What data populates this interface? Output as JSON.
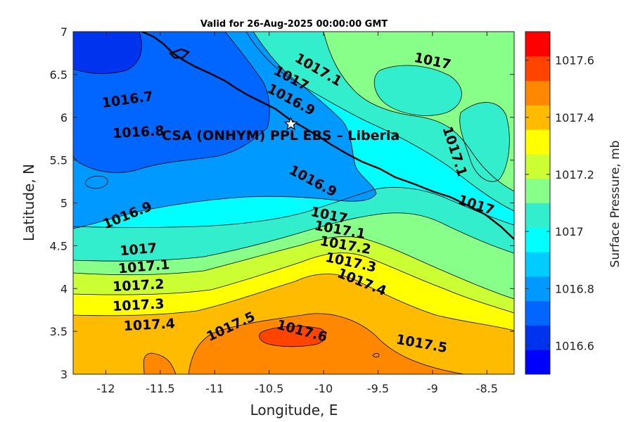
{
  "title": "Valid for 26-Aug-2025 00:00:00 GMT",
  "site_label": "CSA (ONHYM) PPL EBS  – Liberia",
  "chart_data": {
    "type": "contour",
    "xlabel": "Longitude, E",
    "ylabel": "Latitude, N",
    "xlim": [
      -12.3,
      -8.25
    ],
    "ylim": [
      3,
      7
    ],
    "x_ticks": [
      "-12",
      "-11.5",
      "-11",
      "-10.5",
      "-10",
      "-9.5",
      "-9",
      "-8.5"
    ],
    "y_ticks": [
      "3",
      "3.5",
      "4",
      "4.5",
      "5",
      "5.5",
      "6",
      "6.5",
      "7"
    ],
    "colorbar": {
      "label": "Surface Pressure, mb",
      "range": [
        1016.5,
        1017.7
      ],
      "step": 0.1,
      "ticks": [
        "1016.6",
        "1016.8",
        "1017",
        "1017.2",
        "1017.4",
        "1017.6"
      ],
      "colors": [
        "#0000ff",
        "#0033ee",
        "#0066ff",
        "#0099ff",
        "#00ccff",
        "#00ffff",
        "#33eecc",
        "#88ff88",
        "#ccff33",
        "#ffff00",
        "#ffbb00",
        "#ff8800",
        "#ff4400",
        "#ff0000"
      ]
    },
    "contour_labels": [
      {
        "text": "1016.7",
        "lon": -11.8,
        "lat": 6.2
      },
      {
        "text": "1016.8",
        "lon": -11.7,
        "lat": 5.82
      },
      {
        "text": "1016.9",
        "lon": -11.8,
        "lat": 4.85
      },
      {
        "text": "1016.9",
        "lon": -10.3,
        "lat": 6.2
      },
      {
        "text": "1016.9",
        "lon": -10.1,
        "lat": 5.25
      },
      {
        "text": "1017",
        "lon": -10.3,
        "lat": 6.45
      },
      {
        "text": "1017",
        "lon": -9.0,
        "lat": 6.65
      },
      {
        "text": "1017",
        "lon": -8.6,
        "lat": 4.97
      },
      {
        "text": "1017",
        "lon": -11.7,
        "lat": 4.45
      },
      {
        "text": "1017",
        "lon": -9.95,
        "lat": 4.85
      },
      {
        "text": "1017.1",
        "lon": -10.05,
        "lat": 6.55
      },
      {
        "text": "1017.1",
        "lon": -8.8,
        "lat": 5.6
      },
      {
        "text": "1017.1",
        "lon": -11.65,
        "lat": 4.25
      },
      {
        "text": "1017.1",
        "lon": -9.85,
        "lat": 4.68
      },
      {
        "text": "1017.2",
        "lon": -11.7,
        "lat": 4.03
      },
      {
        "text": "1017.2",
        "lon": -9.8,
        "lat": 4.5
      },
      {
        "text": "1017.3",
        "lon": -11.7,
        "lat": 3.8
      },
      {
        "text": "1017.3",
        "lon": -9.75,
        "lat": 4.3
      },
      {
        "text": "1017.4",
        "lon": -11.6,
        "lat": 3.57
      },
      {
        "text": "1017.4",
        "lon": -9.65,
        "lat": 4.07
      },
      {
        "text": "1017.5",
        "lon": -10.85,
        "lat": 3.55
      },
      {
        "text": "1017.5",
        "lon": -9.1,
        "lat": 3.35
      },
      {
        "text": "1017.6",
        "lon": -10.2,
        "lat": 3.5
      }
    ],
    "site": {
      "lon": -10.3,
      "lat": 5.92
    }
  }
}
